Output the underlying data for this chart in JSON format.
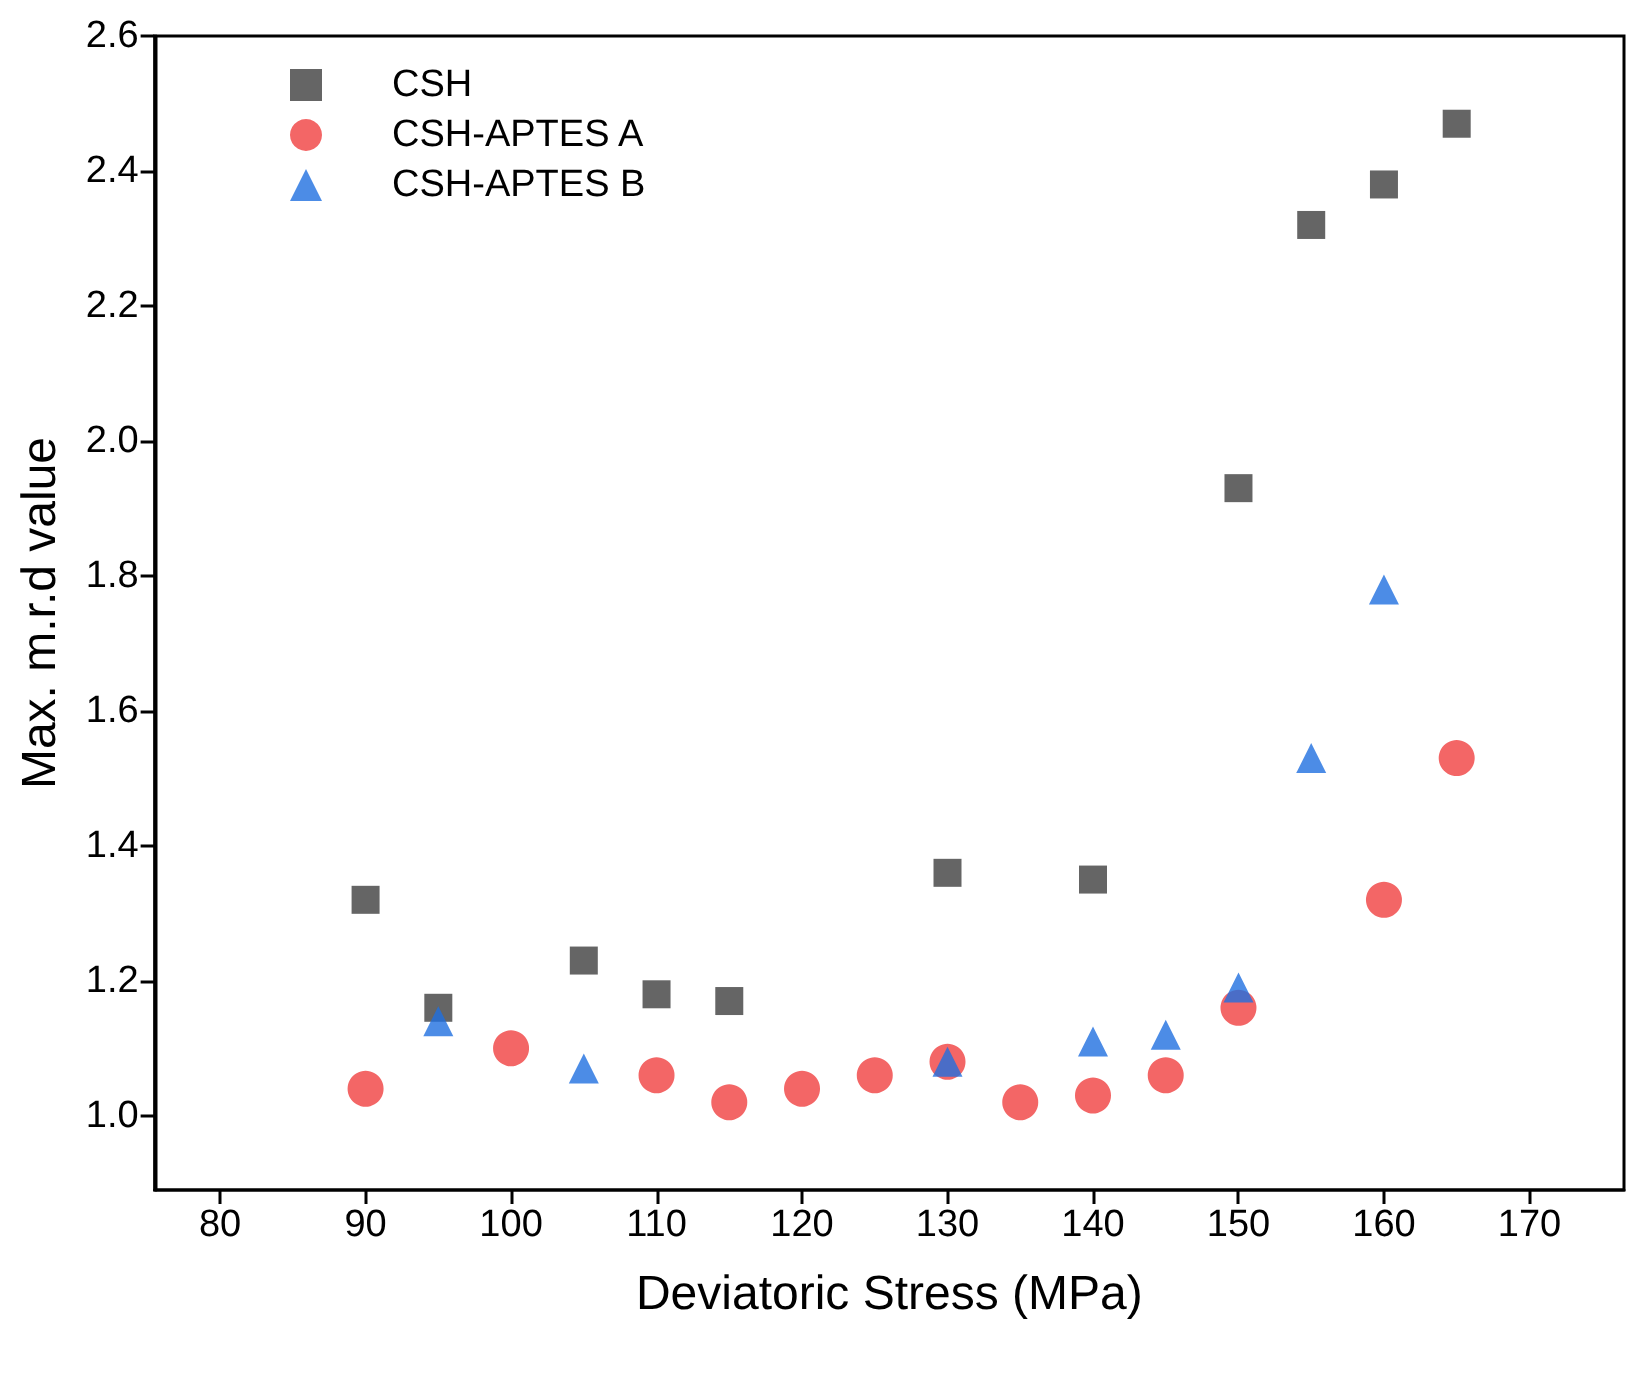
{
  "chart_data": {
    "type": "scatter",
    "xlabel": "Deviatoric Stress (MPa)",
    "ylabel": "Max. m.r.d value",
    "xlim": [
      75.5,
      176.5
    ],
    "xticks": [
      80,
      90,
      100,
      110,
      120,
      130,
      140,
      150,
      160,
      170
    ],
    "ylim": [
      0.89,
      2.6
    ],
    "yticks": [
      {
        "value": 1,
        "label": "1.0"
      },
      {
        "value": 1.2,
        "label": "1.2"
      },
      {
        "value": 1.4,
        "label": "1.4"
      },
      {
        "value": 1.6,
        "label": "1.6"
      },
      {
        "value": 1.8,
        "label": "1.8"
      },
      {
        "value": 2,
        "label": "2.0"
      },
      {
        "value": 2.2,
        "label": "2.2"
      },
      {
        "value": 2.4,
        "label": "2.4"
      },
      {
        "value": 2.6,
        "label": "2.6"
      }
    ],
    "legend": "top left",
    "grid": false,
    "series": [
      {
        "name": "CSH",
        "color": "#3f3f3f",
        "marker": "square",
        "x": [
          90,
          95,
          105,
          110,
          115,
          130,
          140,
          150,
          155,
          160,
          165
        ],
        "values": [
          1.32,
          1.16,
          1.23,
          1.18,
          1.17,
          1.36,
          1.35,
          1.93,
          2.32,
          2.38,
          2.47
        ]
      },
      {
        "name": "CSH-APTES A",
        "color": "#f04040",
        "marker": "circle",
        "x": [
          90,
          100,
          110,
          115,
          120,
          125,
          130,
          135,
          140,
          145,
          150,
          160,
          165
        ],
        "values": [
          1.04,
          1.1,
          1.06,
          1.02,
          1.04,
          1.06,
          1.08,
          1.02,
          1.03,
          1.06,
          1.16,
          1.32,
          1.53
        ]
      },
      {
        "name": "CSH-APTES B",
        "color": "#1f6fe0",
        "marker": "triangle",
        "x": [
          95,
          105,
          130,
          140,
          145,
          150,
          155,
          160
        ],
        "values": [
          1.14,
          1.07,
          1.08,
          1.11,
          1.12,
          1.19,
          1.53,
          1.78
        ]
      }
    ]
  }
}
